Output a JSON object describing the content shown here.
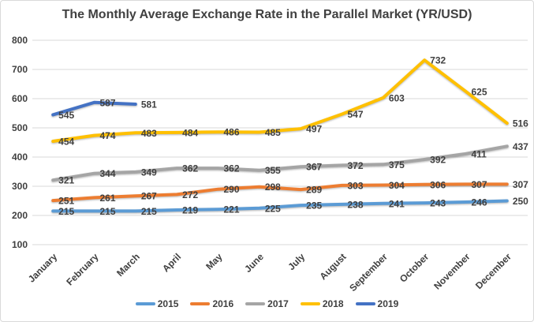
{
  "chart": {
    "title": "The Monthly Average Exchange Rate in the Parallel Market (YR/USD)"
  },
  "chart_data": {
    "type": "line",
    "title": "The Monthly Average Exchange Rate in the Parallel Market (YR/USD)",
    "categories": [
      "January",
      "February",
      "March",
      "April",
      "May",
      "June",
      "July",
      "August",
      "September",
      "October",
      "November",
      "December"
    ],
    "series": [
      {
        "name": "2015",
        "color": "#5B9BD5",
        "values": [
          215,
          215,
          215,
          219,
          221,
          225,
          235,
          238,
          241,
          243,
          246,
          250
        ]
      },
      {
        "name": "2016",
        "color": "#ED7D31",
        "values": [
          251,
          261,
          267,
          272,
          290,
          298,
          289,
          303,
          304,
          306,
          307,
          307
        ]
      },
      {
        "name": "2017",
        "color": "#A5A5A5",
        "values": [
          321,
          344,
          349,
          362,
          362,
          355,
          367,
          372,
          375,
          392,
          411,
          437
        ]
      },
      {
        "name": "2018",
        "color": "#FFC000",
        "values": [
          454,
          474,
          483,
          484,
          486,
          485,
          497,
          547,
          603,
          732,
          625,
          516
        ]
      },
      {
        "name": "2019",
        "color": "#4472C4",
        "values": [
          545,
          587,
          581,
          null,
          null,
          null,
          null,
          null,
          null,
          null,
          null,
          null
        ]
      }
    ],
    "xlabel": "",
    "ylabel": "",
    "ylim": [
      100,
      800
    ],
    "y_ticks": [
      800,
      700,
      600,
      500,
      400,
      300,
      200,
      100
    ],
    "grid": true,
    "data_labels": true,
    "legend_position": "bottom",
    "style": {
      "grid_color": "#d9d9d9",
      "text_color": "#404040",
      "background": "#ffffff"
    }
  }
}
